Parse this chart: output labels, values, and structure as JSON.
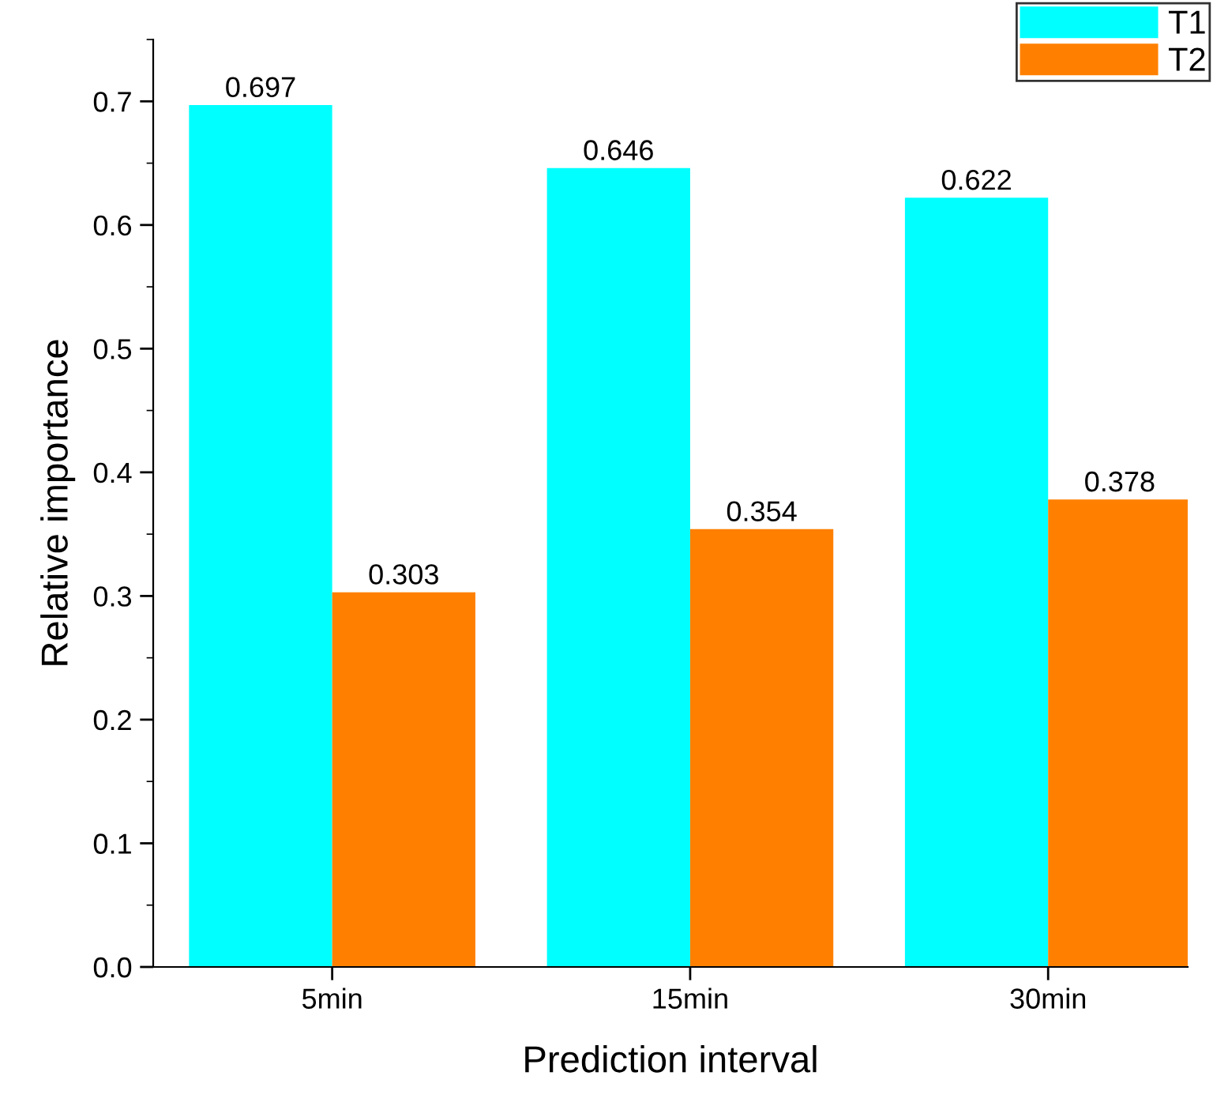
{
  "chart_data": {
    "type": "bar",
    "xlabel": "Prediction interval",
    "ylabel": "Relative importance",
    "categories": [
      "5min",
      "15min",
      "30min"
    ],
    "series": [
      {
        "name": "T1",
        "color": "#00ffff",
        "values": [
          0.697,
          0.646,
          0.622
        ]
      },
      {
        "name": "T2",
        "color": "#ff8000",
        "values": [
          0.303,
          0.354,
          0.378
        ]
      }
    ],
    "ylim": [
      0,
      0.75
    ],
    "yticks": [
      {
        "value": 0,
        "label": "0.0"
      },
      0.1,
      0.2,
      0.3,
      0.4,
      0.5,
      0.6,
      0.7
    ],
    "data_labels": true,
    "legend": "top right",
    "grid": false
  }
}
